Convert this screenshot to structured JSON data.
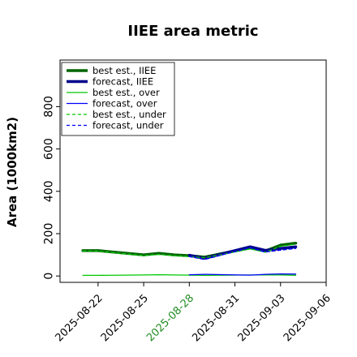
{
  "chart_data": {
    "type": "line",
    "title": "IIEE area metric",
    "xlabel": "",
    "ylabel": "Area (1000km2)",
    "xlim": [
      "2025-08-19T12:00",
      "2025-09-06"
    ],
    "ylim": [
      -30,
      1020
    ],
    "yticks": [
      0,
      200,
      400,
      600,
      800
    ],
    "xticks": [
      "2025-08-22",
      "2025-08-25",
      "2025-08-28",
      "2025-08-31",
      "2025-09-03",
      "2025-09-06"
    ],
    "highlight_xtick": "2025-08-28",
    "grid": false,
    "legend_position": "top-left",
    "series": [
      {
        "name": "best est., IIEE",
        "color": "#006400",
        "style": "solid",
        "width": 3.5,
        "points": [
          [
            "2025-08-21",
            120
          ],
          [
            "2025-08-22",
            120
          ],
          [
            "2025-08-25",
            100
          ],
          [
            "2025-08-26",
            107
          ],
          [
            "2025-08-27",
            100
          ],
          [
            "2025-08-28",
            96
          ],
          [
            "2025-08-29",
            89
          ],
          [
            "2025-09-01",
            133
          ],
          [
            "2025-09-02",
            118
          ],
          [
            "2025-09-03",
            146
          ],
          [
            "2025-09-04",
            155
          ]
        ]
      },
      {
        "name": "forecast, IIEE",
        "color": "#00008b",
        "style": "solid",
        "width": 3.5,
        "points": [
          [
            "2025-08-28",
            98
          ],
          [
            "2025-08-29",
            84
          ],
          [
            "2025-09-01",
            138
          ],
          [
            "2025-09-02",
            121
          ],
          [
            "2025-09-03",
            130
          ],
          [
            "2025-09-04",
            138
          ]
        ]
      },
      {
        "name": "best est., over",
        "color": "#00c800",
        "style": "solid",
        "width": 1.3,
        "points": [
          [
            "2025-08-21",
            3
          ],
          [
            "2025-08-22",
            3
          ],
          [
            "2025-08-25",
            5
          ],
          [
            "2025-08-26",
            6
          ],
          [
            "2025-08-27",
            5
          ],
          [
            "2025-08-28",
            4
          ],
          [
            "2025-08-29",
            3
          ],
          [
            "2025-09-01",
            5
          ],
          [
            "2025-09-02",
            5
          ],
          [
            "2025-09-03",
            5
          ],
          [
            "2025-09-04",
            3
          ]
        ]
      },
      {
        "name": "forecast, over",
        "color": "#0000ff",
        "style": "solid",
        "width": 1.3,
        "points": [
          [
            "2025-08-28",
            6
          ],
          [
            "2025-08-29",
            8
          ],
          [
            "2025-09-01",
            4
          ],
          [
            "2025-09-02",
            8
          ],
          [
            "2025-09-03",
            10
          ],
          [
            "2025-09-04",
            9
          ]
        ]
      },
      {
        "name": "best est., under",
        "color": "#00c800",
        "style": "dashed",
        "width": 1.3,
        "points": [
          [
            "2025-08-21",
            118
          ],
          [
            "2025-08-22",
            118
          ],
          [
            "2025-08-25",
            96
          ],
          [
            "2025-08-26",
            102
          ],
          [
            "2025-08-27",
            96
          ],
          [
            "2025-08-28",
            92
          ],
          [
            "2025-08-29",
            86
          ],
          [
            "2025-09-01",
            128
          ],
          [
            "2025-09-02",
            112
          ],
          [
            "2025-09-03",
            140
          ],
          [
            "2025-09-04",
            150
          ]
        ]
      },
      {
        "name": "forecast, under",
        "color": "#0000ff",
        "style": "dashed",
        "width": 1.3,
        "points": [
          [
            "2025-08-28",
            92
          ],
          [
            "2025-08-29",
            78
          ],
          [
            "2025-09-01",
            134
          ],
          [
            "2025-09-02",
            113
          ],
          [
            "2025-09-03",
            122
          ],
          [
            "2025-09-04",
            130
          ]
        ]
      }
    ]
  }
}
